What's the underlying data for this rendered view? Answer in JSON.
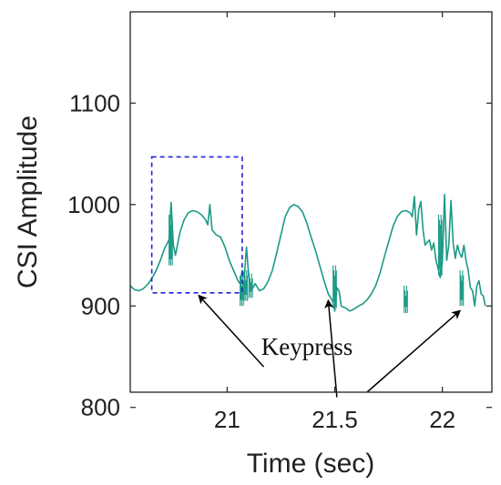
{
  "chart_data": {
    "type": "line",
    "xlabel": "Time (sec)",
    "ylabel": "CSI Amplitude",
    "xlim": [
      20.55,
      22.23
    ],
    "ylim": [
      815,
      1190
    ],
    "xticks": [
      21,
      21.5,
      22
    ],
    "xtick_labels": [
      "21",
      "21.5",
      "22"
    ],
    "yticks": [
      800,
      900,
      1000,
      1100
    ],
    "ytick_labels": [
      "800",
      "900",
      "1000",
      "1100"
    ],
    "grid": false,
    "line_color": "#1a9a86",
    "box_color": "#2222dd",
    "series": [
      {
        "x": [
          20.55,
          20.57,
          20.59,
          20.61,
          20.63,
          20.65,
          20.67,
          20.69,
          20.71,
          20.73,
          20.74,
          20.75,
          20.76,
          20.78,
          20.8,
          20.82,
          20.84,
          20.86,
          20.88,
          20.9,
          20.91,
          20.92,
          20.93,
          20.95,
          20.97,
          20.99,
          21.01,
          21.03,
          21.05,
          21.06,
          21.07,
          21.08,
          21.09,
          21.1,
          21.11,
          21.12,
          21.13,
          21.15,
          21.17,
          21.19,
          21.21,
          21.23,
          21.25,
          21.27,
          21.29,
          21.31,
          21.33,
          21.35,
          21.37,
          21.39,
          21.41,
          21.43,
          21.45,
          21.47,
          21.49,
          21.5,
          21.51,
          21.52,
          21.53,
          21.55,
          21.57,
          21.59,
          21.61,
          21.63,
          21.65,
          21.67,
          21.69,
          21.71,
          21.73,
          21.75,
          21.77,
          21.79,
          21.81,
          21.83,
          21.85,
          21.86,
          21.87,
          21.88,
          21.89,
          21.9,
          21.91,
          21.92,
          21.93,
          21.94,
          21.95,
          21.96,
          21.97,
          21.98,
          21.99,
          22.0,
          22.01,
          22.02,
          22.03,
          22.04,
          22.05,
          22.06,
          22.07,
          22.08,
          22.09,
          22.1,
          22.11,
          22.12,
          22.13,
          22.14,
          22.15,
          22.16,
          22.17,
          22.18,
          22.19,
          22.2
        ],
        "y": [
          920,
          916,
          915,
          917,
          921,
          927,
          935,
          945,
          957,
          965,
          1002,
          960,
          950,
          972,
          985,
          992,
          994,
          993,
          990,
          985,
          980,
          1000,
          975,
          970,
          968,
          958,
          945,
          935,
          925,
          922,
          935,
          928,
          958,
          930,
          920,
          918,
          922,
          915,
          917,
          924,
          935,
          952,
          970,
          988,
          997,
          1000,
          998,
          993,
          982,
          968,
          955,
          940,
          925,
          912,
          905,
          895,
          918,
          915,
          900,
          898,
          895,
          897,
          900,
          902,
          906,
          912,
          920,
          932,
          948,
          963,
          978,
          988,
          993,
          994,
          992,
          988,
          1008,
          970,
          995,
          1003,
          975,
          960,
          963,
          965,
          955,
          962,
          945,
          937,
          928,
          943,
          1010,
          945,
          960,
          1004,
          962,
          947,
          960,
          952,
          948,
          960,
          945,
          935,
          918,
          915,
          900,
          920,
          925,
          912,
          910,
          900
        ]
      }
    ],
    "spikes": [
      {
        "x": 20.738,
        "low": 940,
        "high": 990
      },
      {
        "x": 21.068,
        "low": 900,
        "high": 930
      },
      {
        "x": 21.087,
        "low": 905,
        "high": 935
      },
      {
        "x": 21.11,
        "low": 908,
        "high": 932
      },
      {
        "x": 21.5,
        "low": 898,
        "high": 940
      },
      {
        "x": 21.83,
        "low": 893,
        "high": 920
      },
      {
        "x": 21.99,
        "low": 930,
        "high": 990
      },
      {
        "x": 22.09,
        "low": 900,
        "high": 935
      }
    ],
    "highlight_box": {
      "x0": 20.65,
      "x1": 21.07,
      "y0": 913,
      "y1": 1047
    },
    "annotations": [
      {
        "text": "Keypress"
      }
    ],
    "arrows": [
      {
        "from": [
          21.17,
          840
        ],
        "to": [
          20.87,
          910
        ]
      },
      {
        "from": [
          21.51,
          810
        ],
        "to": [
          21.47,
          905
        ]
      },
      {
        "from": [
          21.65,
          815
        ],
        "to": [
          22.08,
          895
        ]
      }
    ]
  }
}
